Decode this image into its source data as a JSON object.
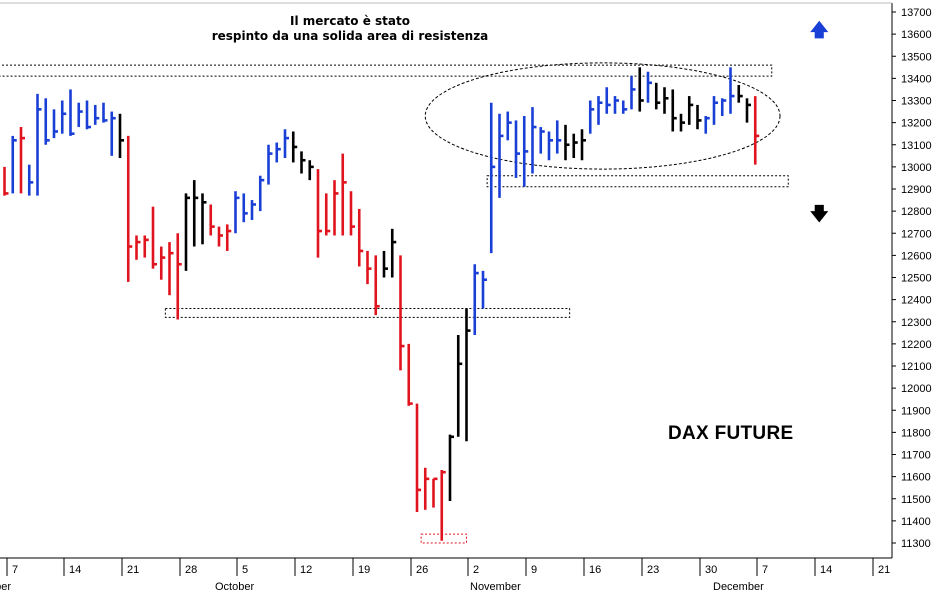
{
  "annotation": {
    "line1": "Il mercato è stato",
    "line2": "respinto da una solida area di resistenza"
  },
  "product_label": "DAX FUTURE",
  "arrows": {
    "up": "up-arrow-icon",
    "down": "down-arrow-icon"
  },
  "colors": {
    "up": "#1a3fd6",
    "down": "#e0141e",
    "neutral": "#000000",
    "grid": "#9a9a9a"
  },
  "chart_data": {
    "type": "ohlc-bar",
    "ylim": [
      11230,
      13740
    ],
    "y_ticks": [
      11300,
      11400,
      11500,
      11600,
      11700,
      11800,
      11900,
      12000,
      12100,
      12200,
      12300,
      12400,
      12500,
      12600,
      12700,
      12800,
      12900,
      13000,
      13100,
      13200,
      13300,
      13400,
      13500,
      13600,
      13700
    ],
    "x_ticks": [
      "7",
      "14",
      "21",
      "28",
      "5",
      "12",
      "19",
      "26",
      "2",
      "9",
      "16",
      "23",
      "30",
      "7",
      "14",
      "21"
    ],
    "month_labels": [
      "mber",
      "October",
      "November",
      "December"
    ],
    "bars": [
      {
        "h": 13000,
        "l": 12870,
        "c": 12880,
        "col": "down"
      },
      {
        "h": 13140,
        "l": 12880,
        "c": 13120,
        "col": "up"
      },
      {
        "h": 13180,
        "l": 12880,
        "c": 13130,
        "col": "down"
      },
      {
        "h": 13010,
        "l": 12870,
        "c": 12930,
        "col": "up"
      },
      {
        "h": 13330,
        "l": 12870,
        "c": 13260,
        "col": "up"
      },
      {
        "h": 13310,
        "l": 13100,
        "c": 13120,
        "col": "up"
      },
      {
        "h": 13260,
        "l": 13130,
        "c": 13160,
        "col": "up"
      },
      {
        "h": 13300,
        "l": 13150,
        "c": 13240,
        "col": "up"
      },
      {
        "h": 13350,
        "l": 13140,
        "c": 13150,
        "col": "up"
      },
      {
        "h": 13290,
        "l": 13180,
        "c": 13250,
        "col": "up"
      },
      {
        "h": 13300,
        "l": 13170,
        "c": 13180,
        "col": "up"
      },
      {
        "h": 13280,
        "l": 13190,
        "c": 13220,
        "col": "up"
      },
      {
        "h": 13290,
        "l": 13200,
        "c": 13210,
        "col": "up"
      },
      {
        "h": 13250,
        "l": 13050,
        "c": 13220,
        "col": "up"
      },
      {
        "h": 13240,
        "l": 13040,
        "c": 13120,
        "col": "neutral"
      },
      {
        "h": 13140,
        "l": 12480,
        "c": 12640,
        "col": "down"
      },
      {
        "h": 12690,
        "l": 12580,
        "c": 12660,
        "col": "down"
      },
      {
        "h": 12690,
        "l": 12590,
        "c": 12670,
        "col": "down"
      },
      {
        "h": 12820,
        "l": 12540,
        "c": 12560,
        "col": "down"
      },
      {
        "h": 12640,
        "l": 12490,
        "c": 12590,
        "col": "down"
      },
      {
        "h": 12660,
        "l": 12420,
        "c": 12610,
        "col": "down"
      },
      {
        "h": 12700,
        "l": 12310,
        "c": 12560,
        "col": "down"
      },
      {
        "h": 12880,
        "l": 12530,
        "c": 12860,
        "col": "neutral"
      },
      {
        "h": 12940,
        "l": 12640,
        "c": 12860,
        "col": "neutral"
      },
      {
        "h": 12880,
        "l": 12650,
        "c": 12840,
        "col": "neutral"
      },
      {
        "h": 12830,
        "l": 12690,
        "c": 12730,
        "col": "down"
      },
      {
        "h": 12730,
        "l": 12640,
        "c": 12690,
        "col": "down"
      },
      {
        "h": 12740,
        "l": 12620,
        "c": 12710,
        "col": "down"
      },
      {
        "h": 12890,
        "l": 12700,
        "c": 12860,
        "col": "up"
      },
      {
        "h": 12880,
        "l": 12750,
        "c": 12790,
        "col": "up"
      },
      {
        "h": 12850,
        "l": 12760,
        "c": 12830,
        "col": "up"
      },
      {
        "h": 12960,
        "l": 12800,
        "c": 12940,
        "col": "up"
      },
      {
        "h": 13100,
        "l": 12920,
        "c": 13060,
        "col": "up"
      },
      {
        "h": 13110,
        "l": 13020,
        "c": 13080,
        "col": "up"
      },
      {
        "h": 13170,
        "l": 13040,
        "c": 13130,
        "col": "up"
      },
      {
        "h": 13160,
        "l": 13020,
        "c": 13090,
        "col": "neutral"
      },
      {
        "h": 13070,
        "l": 12970,
        "c": 13030,
        "col": "neutral"
      },
      {
        "h": 13030,
        "l": 12940,
        "c": 13000,
        "col": "neutral"
      },
      {
        "h": 12990,
        "l": 12590,
        "c": 12710,
        "col": "down"
      },
      {
        "h": 12880,
        "l": 12690,
        "c": 12710,
        "col": "down"
      },
      {
        "h": 12940,
        "l": 12690,
        "c": 12880,
        "col": "down"
      },
      {
        "h": 13060,
        "l": 12690,
        "c": 12930,
        "col": "down"
      },
      {
        "h": 12890,
        "l": 12690,
        "c": 12730,
        "col": "down"
      },
      {
        "h": 12810,
        "l": 12550,
        "c": 12620,
        "col": "down"
      },
      {
        "h": 12620,
        "l": 12470,
        "c": 12540,
        "col": "down"
      },
      {
        "h": 12600,
        "l": 12330,
        "c": 12370,
        "col": "down"
      },
      {
        "h": 12620,
        "l": 12500,
        "c": 12540,
        "col": "neutral"
      },
      {
        "h": 12720,
        "l": 12500,
        "c": 12660,
        "col": "neutral"
      },
      {
        "h": 12600,
        "l": 12080,
        "c": 12190,
        "col": "down"
      },
      {
        "h": 12200,
        "l": 11920,
        "c": 11930,
        "col": "down"
      },
      {
        "h": 11930,
        "l": 11440,
        "c": 11540,
        "col": "down"
      },
      {
        "h": 11640,
        "l": 11450,
        "c": 11590,
        "col": "down"
      },
      {
        "h": 11590,
        "l": 11460,
        "c": 11590,
        "col": "down"
      },
      {
        "h": 11630,
        "l": 11310,
        "c": 11620,
        "col": "down"
      },
      {
        "h": 11790,
        "l": 11490,
        "c": 11780,
        "col": "neutral"
      },
      {
        "h": 12240,
        "l": 11780,
        "c": 12110,
        "col": "neutral"
      },
      {
        "h": 12360,
        "l": 11760,
        "c": 12260,
        "col": "neutral"
      },
      {
        "h": 12560,
        "l": 12240,
        "c": 12520,
        "col": "up"
      },
      {
        "h": 12530,
        "l": 12360,
        "c": 12490,
        "col": "up"
      },
      {
        "h": 13290,
        "l": 12610,
        "c": 13000,
        "col": "up"
      },
      {
        "h": 13240,
        "l": 12860,
        "c": 13140,
        "col": "up"
      },
      {
        "h": 13250,
        "l": 13120,
        "c": 13200,
        "col": "up"
      },
      {
        "h": 13210,
        "l": 12950,
        "c": 13060,
        "col": "up"
      },
      {
        "h": 13230,
        "l": 12910,
        "c": 13070,
        "col": "up"
      },
      {
        "h": 13270,
        "l": 12970,
        "c": 13180,
        "col": "up"
      },
      {
        "h": 13180,
        "l": 13060,
        "c": 13160,
        "col": "up"
      },
      {
        "h": 13160,
        "l": 13030,
        "c": 13120,
        "col": "up"
      },
      {
        "h": 13210,
        "l": 13060,
        "c": 13120,
        "col": "up"
      },
      {
        "h": 13190,
        "l": 13030,
        "c": 13100,
        "col": "neutral"
      },
      {
        "h": 13150,
        "l": 13040,
        "c": 13110,
        "col": "neutral"
      },
      {
        "h": 13170,
        "l": 13030,
        "c": 13120,
        "col": "neutral"
      },
      {
        "h": 13300,
        "l": 13150,
        "c": 13260,
        "col": "up"
      },
      {
        "h": 13320,
        "l": 13190,
        "c": 13290,
        "col": "up"
      },
      {
        "h": 13360,
        "l": 13240,
        "c": 13280,
        "col": "up"
      },
      {
        "h": 13320,
        "l": 13240,
        "c": 13300,
        "col": "up"
      },
      {
        "h": 13300,
        "l": 13240,
        "c": 13260,
        "col": "up"
      },
      {
        "h": 13410,
        "l": 13260,
        "c": 13350,
        "col": "up"
      },
      {
        "h": 13450,
        "l": 13250,
        "c": 13300,
        "col": "neutral"
      },
      {
        "h": 13430,
        "l": 13290,
        "c": 13380,
        "col": "up"
      },
      {
        "h": 13380,
        "l": 13260,
        "c": 13290,
        "col": "neutral"
      },
      {
        "h": 13360,
        "l": 13240,
        "c": 13310,
        "col": "neutral"
      },
      {
        "h": 13350,
        "l": 13160,
        "c": 13220,
        "col": "neutral"
      },
      {
        "h": 13240,
        "l": 13160,
        "c": 13200,
        "col": "neutral"
      },
      {
        "h": 13320,
        "l": 13190,
        "c": 13280,
        "col": "neutral"
      },
      {
        "h": 13280,
        "l": 13170,
        "c": 13210,
        "col": "neutral"
      },
      {
        "h": 13230,
        "l": 13150,
        "c": 13220,
        "col": "up"
      },
      {
        "h": 13320,
        "l": 13190,
        "c": 13290,
        "col": "up"
      },
      {
        "h": 13310,
        "l": 13230,
        "c": 13300,
        "col": "up"
      },
      {
        "h": 13450,
        "l": 13240,
        "c": 13320,
        "col": "up"
      },
      {
        "h": 13370,
        "l": 13290,
        "c": 13320,
        "col": "neutral"
      },
      {
        "h": 13310,
        "l": 13200,
        "c": 13280,
        "col": "neutral"
      },
      {
        "h": 13320,
        "l": 13010,
        "c": 13140,
        "col": "down"
      }
    ],
    "levels": [
      {
        "y1": 13410,
        "y2": 13460,
        "x_from": -1,
        "x_to": 93
      },
      {
        "y1": 12910,
        "y2": 12960,
        "x_from": 58.5,
        "x_to": 95
      },
      {
        "y1": 12320,
        "y2": 12360,
        "x_from": 19.5,
        "x_to": 68.5
      },
      {
        "y1": 11300,
        "y2": 11340,
        "x_from": 50.5,
        "x_to": 56
      }
    ],
    "ellipse": {
      "x_center": 72.5,
      "x_radius": 21.5,
      "y_center": 13230,
      "y_radius": 240
    }
  }
}
